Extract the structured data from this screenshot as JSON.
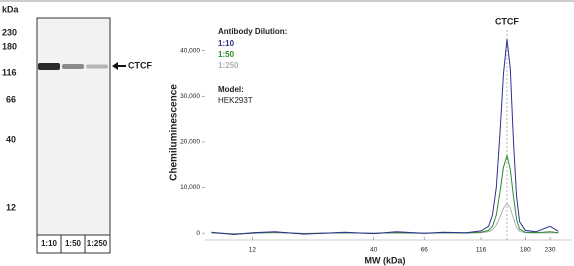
{
  "blot": {
    "unit": "kDa",
    "markers": [
      "230",
      "180",
      "116",
      "66",
      "40",
      "12"
    ],
    "lanes": [
      "1:10",
      "1:50",
      "1:250"
    ],
    "band_label": "CTCF"
  },
  "chart_data": {
    "type": "line",
    "y_label": "Chemiluminescence",
    "x_label": "MW (kDa)",
    "legend_title": "Antibody Dilution:",
    "model_label": "Model:",
    "model": "HEK293T",
    "annotation": {
      "text": "CTCF",
      "x": 150
    },
    "x_log": true,
    "x": [
      8,
      10,
      12,
      15,
      20,
      30,
      40,
      50,
      66,
      80,
      100,
      116,
      125,
      130,
      135,
      140,
      145,
      150,
      155,
      160,
      165,
      170,
      180,
      200,
      230,
      250
    ],
    "series": [
      {
        "name": "1:10",
        "color": "#2e3192",
        "values": [
          200,
          -300,
          100,
          300,
          -200,
          200,
          -100,
          300,
          0,
          200,
          100,
          500,
          1500,
          4000,
          10000,
          22000,
          35000,
          42500,
          36000,
          20000,
          8000,
          2500,
          600,
          300,
          1500,
          400
        ]
      },
      {
        "name": "1:50",
        "color": "#2e8b2e",
        "values": [
          100,
          -200,
          0,
          200,
          -100,
          100,
          0,
          100,
          0,
          100,
          50,
          200,
          600,
          1500,
          4000,
          9000,
          14500,
          17000,
          14000,
          8000,
          3000,
          900,
          200,
          100,
          300,
          100
        ]
      },
      {
        "name": "1:250",
        "color": "#b0b0b0",
        "values": [
          50,
          -100,
          0,
          100,
          -50,
          50,
          0,
          50,
          0,
          50,
          20,
          100,
          300,
          700,
          1800,
          3500,
          5500,
          6500,
          5500,
          3200,
          1200,
          400,
          100,
          50,
          100,
          50
        ]
      }
    ],
    "xlim": [
      7.5,
      286
    ],
    "xticks": [
      12,
      40,
      66,
      116,
      180,
      230
    ],
    "ylim": [
      -1500,
      50000
    ],
    "yticks": [
      0,
      {
        "value": 10000,
        "label": "10,000"
      },
      {
        "value": 20000,
        "label": "20,000"
      },
      {
        "value": 30000,
        "label": "30,000"
      },
      {
        "value": 40000,
        "label": "40,000"
      }
    ]
  }
}
